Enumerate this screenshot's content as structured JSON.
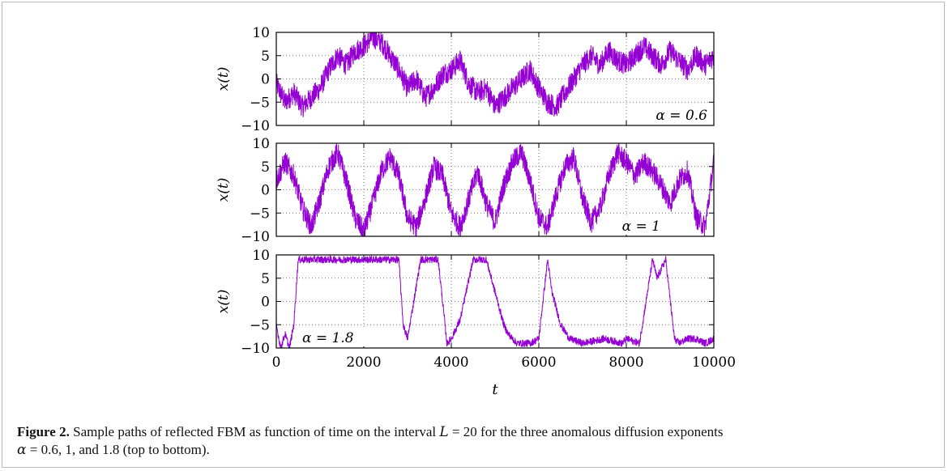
{
  "figure": {
    "caption_label": "Figure 2.",
    "caption_text_1": " Sample paths of reflected FBM as function of time on the interval ",
    "caption_L": "L",
    "caption_eq": " = 20",
    "caption_text_2": " for the three anomalous diffusion exponents",
    "caption_alpha": "α",
    "caption_text_3": " = 0.6, 1, and 1.8 (top to bottom)."
  },
  "chart_data": [
    {
      "type": "line",
      "panel": "top",
      "ylabel": "x(t)",
      "annotation": "α = 0.6",
      "alpha": 0.6,
      "xlim": [
        0,
        10000
      ],
      "ylim": [
        -10,
        10
      ],
      "yticks": [
        "10",
        "5",
        "0",
        "−5",
        "−10"
      ],
      "grid": true,
      "color": "#9400d3",
      "series": [
        {
          "x": [
            0,
            200,
            400,
            600,
            800,
            1000,
            1200,
            1400,
            1600,
            1800,
            2000,
            2200,
            2400,
            2600,
            2800,
            3000,
            3200,
            3400,
            3600,
            3800,
            4000,
            4200,
            4400,
            4600,
            4800,
            5000,
            5200,
            5400,
            5600,
            5800,
            6000,
            6200,
            6400,
            6600,
            6800,
            7000,
            7200,
            7400,
            7600,
            7800,
            8000,
            8200,
            8400,
            8600,
            8800,
            9000,
            9200,
            9400,
            9600,
            9800,
            10000
          ],
          "values": [
            -1,
            -5,
            -3,
            -6,
            -4,
            -2,
            2,
            5,
            3,
            6,
            7,
            9,
            8,
            5,
            2,
            -2,
            0,
            -4,
            -2,
            1,
            2,
            4,
            -1,
            -3,
            -2,
            -6,
            -4,
            -2,
            0,
            2,
            -2,
            -5,
            -6,
            -3,
            0,
            3,
            5,
            3,
            6,
            4,
            3,
            5,
            7,
            5,
            3,
            6,
            4,
            2,
            5,
            3,
            5
          ]
        }
      ]
    },
    {
      "type": "line",
      "panel": "middle",
      "ylabel": "x(t)",
      "annotation": "α = 1",
      "alpha": 1,
      "xlim": [
        0,
        10000
      ],
      "ylim": [
        -10,
        10
      ],
      "yticks": [
        "10",
        "5",
        "0",
        "−5",
        "−10"
      ],
      "grid": true,
      "color": "#9400d3",
      "series": [
        {
          "x": [
            0,
            200,
            400,
            600,
            800,
            1000,
            1200,
            1400,
            1600,
            1800,
            2000,
            2200,
            2400,
            2600,
            2800,
            3000,
            3200,
            3400,
            3600,
            3800,
            4000,
            4200,
            4400,
            4600,
            4800,
            5000,
            5200,
            5400,
            5600,
            5800,
            6000,
            6200,
            6400,
            6600,
            6800,
            7000,
            7200,
            7400,
            7600,
            7800,
            8000,
            8200,
            8400,
            8600,
            8800,
            9000,
            9200,
            9400,
            9600,
            9800,
            10000
          ],
          "values": [
            2,
            6,
            3,
            -4,
            -8,
            -2,
            5,
            8,
            2,
            -6,
            -9,
            -3,
            4,
            7,
            3,
            -6,
            -8,
            -2,
            5,
            3,
            -5,
            -8,
            -2,
            4,
            -3,
            -7,
            1,
            6,
            8,
            2,
            -6,
            -8,
            -1,
            5,
            7,
            -2,
            -7,
            -4,
            3,
            8,
            6,
            3,
            6,
            4,
            1,
            -3,
            2,
            4,
            -6,
            -8,
            6
          ]
        }
      ]
    },
    {
      "type": "line",
      "panel": "bottom",
      "ylabel": "x(t)",
      "xlabel": "t",
      "annotation": "α = 1.8",
      "alpha": 1.8,
      "xlim": [
        0,
        10000
      ],
      "ylim": [
        -10,
        10
      ],
      "xticks": [
        "0",
        "2000",
        "4000",
        "6000",
        "8000",
        "10000"
      ],
      "yticks": [
        "10",
        "5",
        "0",
        "−5",
        "−10"
      ],
      "grid": true,
      "color": "#9400d3",
      "series": [
        {
          "x": [
            0,
            100,
            200,
            300,
            400,
            500,
            800,
            1200,
            1600,
            2000,
            2400,
            2800,
            2900,
            3000,
            3300,
            3700,
            3900,
            4000,
            4200,
            4500,
            4800,
            5200,
            5300,
            5500,
            5800,
            6000,
            6200,
            6300,
            6500,
            6700,
            7000,
            7500,
            7900,
            8000,
            8300,
            8600,
            8700,
            8900,
            9100,
            9200,
            9400,
            9600,
            9800,
            10000
          ],
          "values": [
            -5,
            -10,
            -7,
            -10,
            -5,
            9,
            9,
            9,
            9,
            9,
            9,
            9,
            -5,
            -8,
            9,
            9,
            -9,
            -8,
            -4,
            9,
            9,
            -5,
            -7,
            -9,
            -9,
            -8,
            9,
            2,
            -5,
            -8,
            -9,
            -8,
            -9,
            -8,
            -9,
            9,
            5,
            9,
            -8,
            -9,
            -8,
            -8,
            -9,
            -8
          ]
        }
      ]
    }
  ]
}
